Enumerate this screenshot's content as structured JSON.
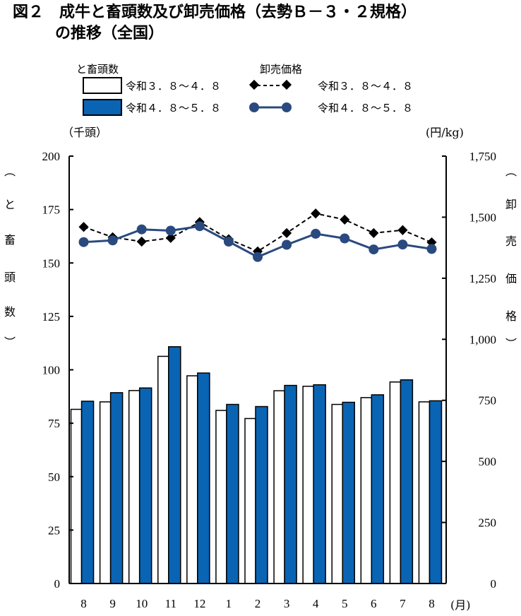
{
  "title_line1": "図２　成牛と畜頭数及び卸売価格（去勢Ｂ－３・２規格）",
  "title_line2": "の推移（全国）",
  "legend": {
    "heads_group": "と畜頭数",
    "price_group": "卸売価格",
    "heads_prev": "令和３．８～４．８",
    "heads_curr": "令和４．８～５．８",
    "price_prev": "令和３．８～４．８",
    "price_curr": "令和４．８～５．８"
  },
  "left_unit": "（千頭）",
  "right_unit": "(円/kg)",
  "x_unit": "(月)",
  "left_axis_label": [
    "︵",
    "と",
    "畜",
    "頭",
    "数",
    "︶"
  ],
  "right_axis_label": [
    "︵",
    "卸",
    "売",
    "価",
    "格",
    "︶"
  ],
  "colors": {
    "bar_curr": "#0a64b4",
    "bar_prev": "#ffffff",
    "line_curr": "#2a4a7f",
    "line_prev": "#000000"
  },
  "chart_data": {
    "type": "bar",
    "categories": [
      "8",
      "9",
      "10",
      "11",
      "12",
      "1",
      "2",
      "3",
      "4",
      "5",
      "6",
      "7",
      "8"
    ],
    "left_ylim": [
      0,
      200
    ],
    "left_ticks": [
      "0",
      "25",
      "50",
      "75",
      "100",
      "125",
      "150",
      "175",
      "200"
    ],
    "right_ylim": [
      0,
      1750
    ],
    "right_ticks": [
      "0",
      "250",
      "500",
      "750",
      "1,000",
      "1,250",
      "1,500",
      "1,750"
    ],
    "series": [
      {
        "name": "と畜頭数 令和３．８～４．８",
        "type": "bar",
        "axis": "left",
        "values": [
          81.5,
          85,
          90.3,
          106.3,
          97.2,
          81,
          77.2,
          90.2,
          92.3,
          83.8,
          87,
          94.3,
          85
        ]
      },
      {
        "name": "と畜頭数 令和４．８～５．８",
        "type": "bar",
        "axis": "left",
        "values": [
          85.3,
          89.3,
          91.5,
          110.8,
          98.5,
          83.8,
          82.8,
          92.7,
          93,
          84.8,
          88.3,
          95.3,
          85.5
        ]
      },
      {
        "name": "卸売価格 令和３．８～４．８",
        "type": "line",
        "axis": "right",
        "values": [
          1460,
          1418,
          1400,
          1415,
          1480,
          1410,
          1360,
          1435,
          1515,
          1490,
          1435,
          1447,
          1397
        ]
      },
      {
        "name": "卸売価格 令和４．８～５．８",
        "type": "line",
        "axis": "right",
        "values": [
          1398,
          1405,
          1450,
          1445,
          1463,
          1400,
          1337,
          1387,
          1432,
          1413,
          1368,
          1388,
          1370
        ]
      }
    ]
  }
}
